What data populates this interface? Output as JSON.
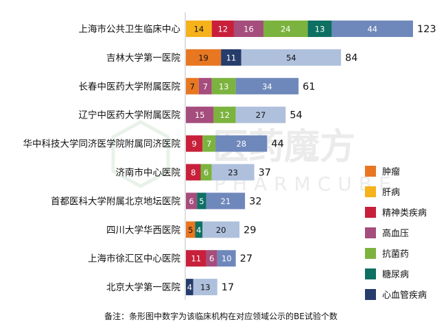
{
  "chart_data": {
    "type": "bar",
    "orientation": "horizontal",
    "stacked": true,
    "categories": [
      "上海市公共卫生临床中心",
      "吉林大学第一医院",
      "长春中医药大学附属医院",
      "辽宁中医药大学附属医院",
      "华中科技大学同济医学院附属同济医院",
      "济南市中心医院",
      "首都医科大学附属北京地坛医院",
      "四川大学华西医院",
      "上海市徐汇区中心医院",
      "北京大学第一医院"
    ],
    "series": [
      {
        "name": "肿瘤",
        "color": "#E87722",
        "values": [
          0,
          19,
          7,
          0,
          0,
          0,
          0,
          5,
          0,
          0
        ]
      },
      {
        "name": "肝病",
        "color": "#F5B21B",
        "values": [
          14,
          0,
          0,
          0,
          0,
          0,
          0,
          0,
          0,
          0
        ]
      },
      {
        "name": "精神类疾病",
        "color": "#C8203B",
        "values": [
          12,
          0,
          0,
          0,
          9,
          8,
          0,
          0,
          11,
          0
        ]
      },
      {
        "name": "高血压",
        "color": "#A54D7C",
        "values": [
          16,
          0,
          7,
          15,
          0,
          0,
          6,
          0,
          6,
          0
        ]
      },
      {
        "name": "抗菌药",
        "color": "#7BB33E",
        "values": [
          24,
          0,
          13,
          12,
          7,
          6,
          0,
          0,
          0,
          0
        ]
      },
      {
        "name": "糖尿病",
        "color": "#0E7062",
        "values": [
          13,
          0,
          0,
          0,
          0,
          0,
          5,
          4,
          0,
          0
        ]
      },
      {
        "name": "心血管疾病",
        "color": "#263D6B",
        "values": [
          0,
          11,
          0,
          0,
          0,
          0,
          0,
          0,
          0,
          4
        ]
      },
      {
        "name": "",
        "color": "#6F88BB",
        "values": [
          44,
          0,
          34,
          0,
          28,
          0,
          21,
          0,
          10,
          0
        ]
      },
      {
        "name": "",
        "color": "#AFC0DC",
        "values": [
          0,
          54,
          0,
          27,
          0,
          23,
          0,
          20,
          0,
          13
        ]
      }
    ],
    "totals": [
      123,
      84,
      61,
      54,
      44,
      37,
      32,
      29,
      27,
      17
    ],
    "legend": {
      "placement": "right",
      "items": [
        "肿瘤",
        "肝病",
        "精神类疾病",
        "高血压",
        "抗菌药",
        "糖尿病",
        "心血管疾病"
      ]
    },
    "xlim": [
      0,
      123
    ],
    "grid": false
  },
  "footnote": "备注：条形图中数字为该临床机构在对应领域公示的BE试验个数",
  "watermark": {
    "text_cn": "医药魔方",
    "text_en": "PHARMCUBE"
  },
  "colors": {
    "dark_text": "#111111",
    "light_text": "#FFFFFF",
    "watermark": "#CFCFCF"
  }
}
